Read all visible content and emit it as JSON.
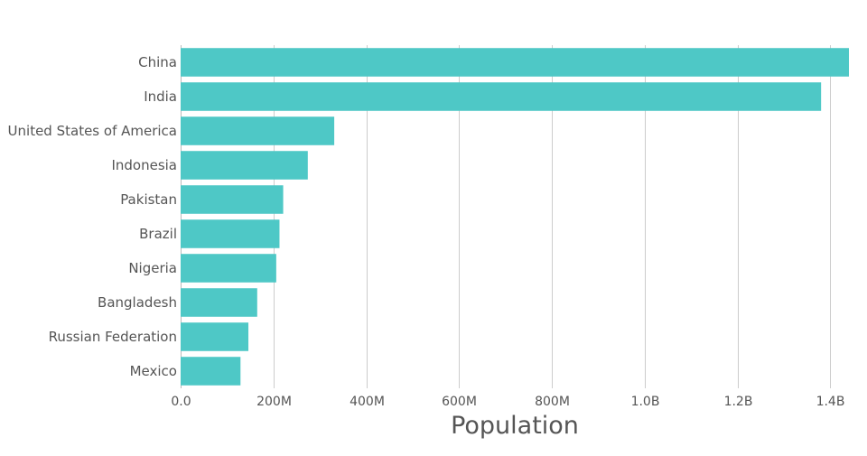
{
  "chart_data": {
    "type": "bar",
    "orientation": "horizontal",
    "categories": [
      "China",
      "India",
      "United States of America",
      "Indonesia",
      "Pakistan",
      "Brazil",
      "Nigeria",
      "Bangladesh",
      "Russian Federation",
      "Mexico"
    ],
    "values": [
      1440000000,
      1380000000,
      331000000,
      274000000,
      221000000,
      213000000,
      206000000,
      165000000,
      146000000,
      129000000
    ],
    "xlabel": "Population",
    "xlim": [
      0,
      1440000000
    ],
    "x_ticks": [
      0,
      200000000,
      400000000,
      600000000,
      800000000,
      1000000000,
      1200000000,
      1400000000
    ],
    "x_tick_labels": [
      "0.0",
      "200M",
      "400M",
      "600M",
      "800M",
      "1.0B",
      "1.2B",
      "1.4B"
    ],
    "grid": true,
    "bar_color": "#4ec8c6",
    "legend": "none"
  }
}
